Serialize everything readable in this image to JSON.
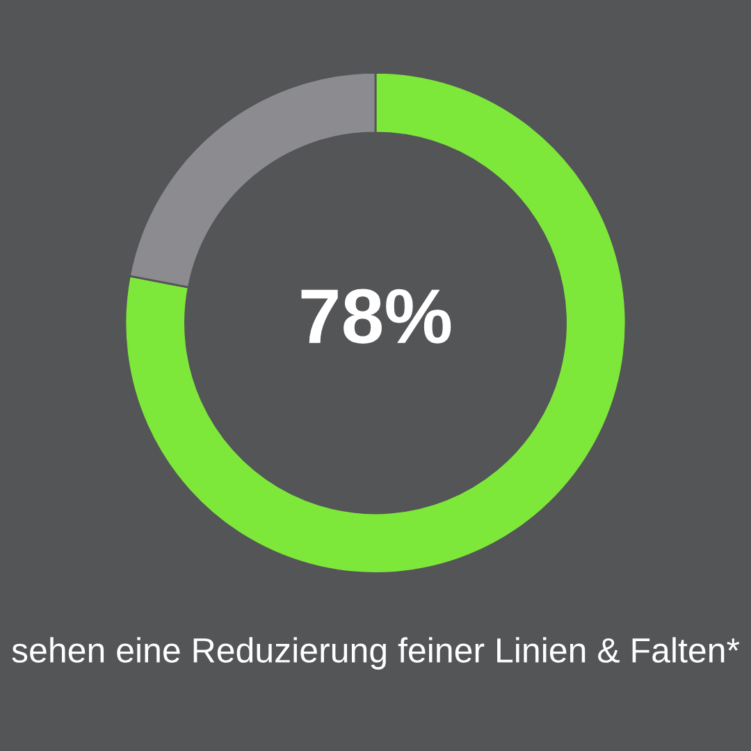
{
  "chart_data": {
    "type": "donut",
    "categories": [
      null,
      null
    ],
    "values": [
      78,
      22
    ],
    "colors": [
      "#7ee83a",
      "#8c8c90"
    ],
    "value_labels": [
      "78%",
      null
    ],
    "annotations": [
      "sehen eine Reduzierung feiner Linien & Falten*"
    ],
    "legend": false
  }
}
